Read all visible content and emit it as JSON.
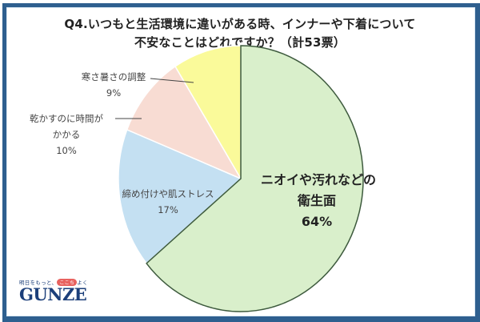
{
  "title": {
    "line1": "Q4.いつもと生活環境に違いがある時、インナーや下着について",
    "line2": "不安なことはどれですか？（計53票）"
  },
  "slices": [
    {
      "name": "hygiene",
      "label_line1": "ニオイや汚れなどの",
      "label_line2": "衛生面",
      "pct": "64%",
      "value": 64,
      "color": "#d9efcb"
    },
    {
      "name": "tightness",
      "label_line1": "締め付けや肌ストレス",
      "pct": "17%",
      "value": 17,
      "color": "#c4e0f2"
    },
    {
      "name": "drying",
      "label_line1": "乾かすのに時間が",
      "label_line2": "かかる",
      "pct": "10%",
      "value": 10,
      "color": "#f8dcd3"
    },
    {
      "name": "temperature",
      "label_line1": "寒さ暑さの調整",
      "pct": "9%",
      "value": 9,
      "color": "#fafa9a"
    }
  ],
  "logo": {
    "tagline_pre": "明日をもっと、",
    "tagline_mark": "ここち",
    "tagline_post": "よく",
    "brand": "GUNZE"
  },
  "colors": {
    "frame": "#2e5f8f",
    "outline": "#3d5a3d"
  },
  "chart_data": {
    "type": "pie",
    "title": "Q4.いつもと生活環境に違いがある時、インナーや下着について不安なことはどれですか？（計53票）",
    "categories": [
      "ニオイや汚れなどの衛生面",
      "締め付けや肌ストレス",
      "乾かすのに時間がかかる",
      "寒さ暑さの調整"
    ],
    "values": [
      64,
      17,
      10,
      9
    ],
    "unit": "%",
    "total_votes": 53,
    "colors": [
      "#d9efcb",
      "#c4e0f2",
      "#f8dcd3",
      "#fafa9a"
    ],
    "start_angle": "12 o'clock, clockwise",
    "legend": "none (data labels)"
  }
}
